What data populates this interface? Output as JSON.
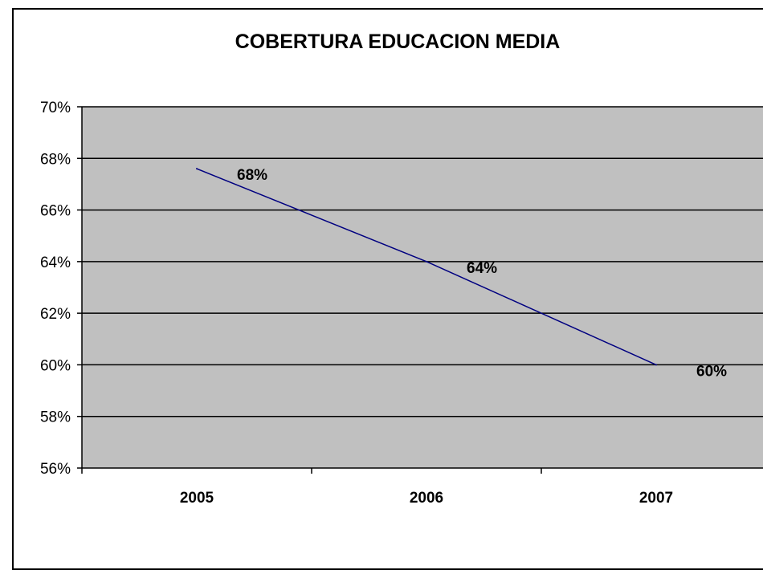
{
  "chart_data": {
    "type": "line",
    "title": "COBERTURA EDUCACION MEDIA",
    "xlabel": "",
    "ylabel": "",
    "categories": [
      "2005",
      "2006",
      "2007"
    ],
    "series": [
      {
        "values": [
          67.6,
          64.0,
          60.0
        ],
        "data_labels": [
          "68%",
          "64%",
          "60%"
        ]
      }
    ],
    "ylim": [
      56,
      70
    ],
    "y_ticks": [
      56,
      58,
      60,
      62,
      64,
      66,
      68,
      70
    ],
    "y_tick_labels": [
      "56%",
      "58%",
      "60%",
      "62%",
      "64%",
      "66%",
      "68%",
      "70%"
    ],
    "grid": true,
    "colors": {
      "plot_background": "#c0c0c0",
      "line": "#000080",
      "gridline": "#000000"
    }
  }
}
